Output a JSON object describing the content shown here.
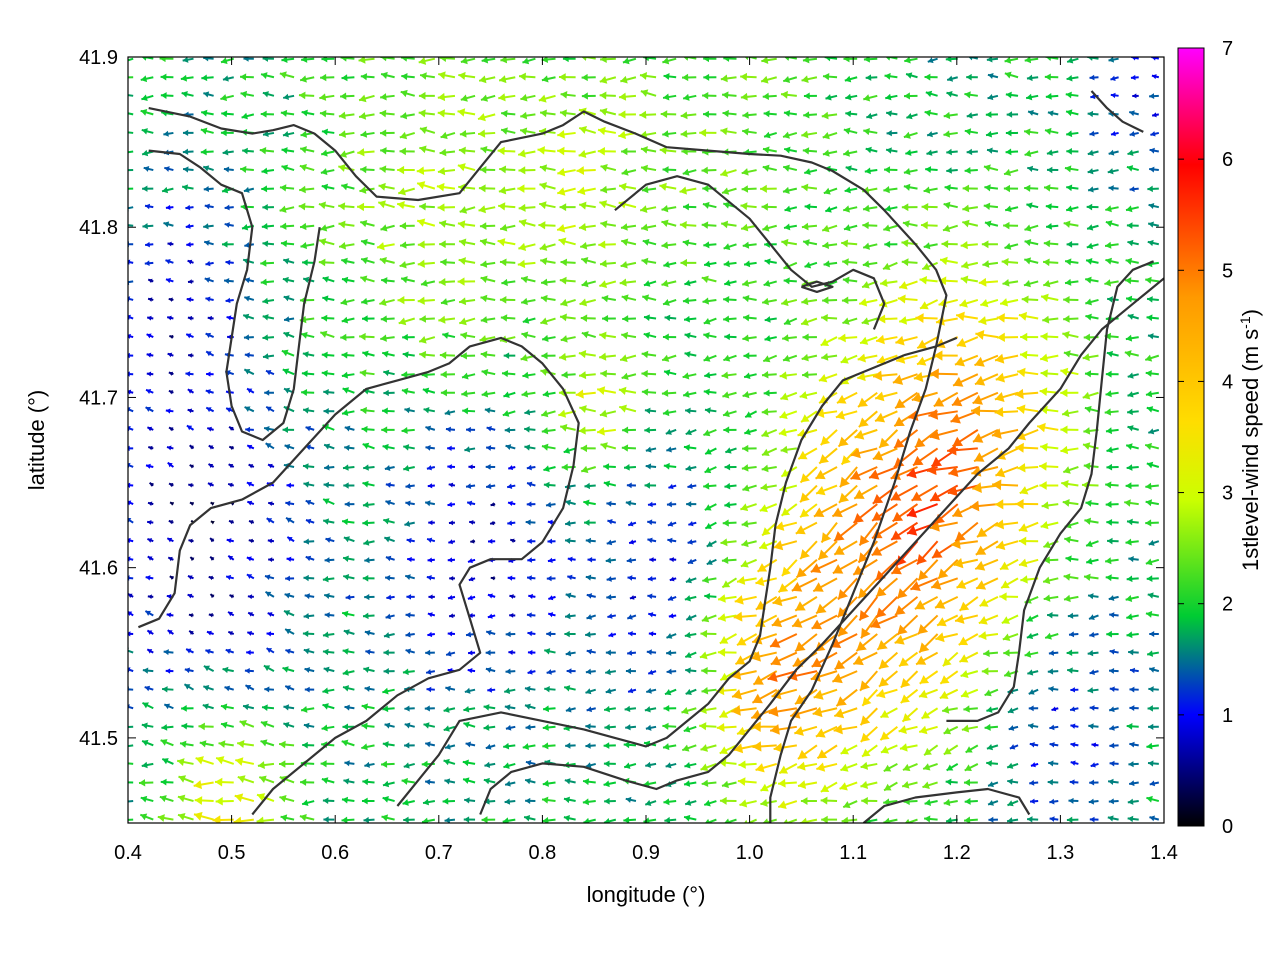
{
  "chart_data": {
    "type": "vector-field",
    "xlabel": "longitude (°)",
    "ylabel": "latitude (°)",
    "xlim": [
      0.4,
      1.4
    ],
    "ylim": [
      41.45,
      41.9
    ],
    "x_ticks": [
      "0.4",
      "0.5",
      "0.6",
      "0.7",
      "0.8",
      "0.9",
      "1.0",
      "1.1",
      "1.2",
      "1.3",
      "1.4"
    ],
    "y_ticks": [
      "41.5",
      "41.6",
      "41.7",
      "41.8",
      "41.9"
    ],
    "x_tick_values": [
      0.4,
      0.5,
      0.6,
      0.7,
      0.8,
      0.9,
      1.0,
      1.1,
      1.2,
      1.3,
      1.4
    ],
    "y_tick_values": [
      41.5,
      41.6,
      41.7,
      41.8,
      41.9
    ],
    "colorbar": {
      "label": "1stlevel-wind speed (m s-1)",
      "label_base": "1stlevel-wind speed (m s",
      "label_sup": "-1",
      "label_end": ")",
      "range": [
        0,
        7
      ],
      "ticks": [
        "0",
        "1",
        "2",
        "3",
        "4",
        "5",
        "6",
        "7"
      ],
      "tick_values": [
        0,
        1,
        2,
        3,
        4,
        5,
        6,
        7
      ],
      "colors": [
        "#000000",
        "#0000ff",
        "#00cc33",
        "#ccff00",
        "#ffdd00",
        "#ff9900",
        "#ff0000",
        "#ff00ff"
      ]
    },
    "grid": false,
    "contour_color": "#333333",
    "contours": [
      [
        [
          0.42,
          41.87
        ],
        [
          0.46,
          41.865
        ],
        [
          0.49,
          41.858
        ],
        [
          0.52,
          41.855
        ],
        [
          0.54,
          41.857
        ],
        [
          0.56,
          41.86
        ],
        [
          0.58,
          41.855
        ],
        [
          0.6,
          41.845
        ],
        [
          0.62,
          41.83
        ],
        [
          0.64,
          41.818
        ],
        [
          0.68,
          41.816
        ],
        [
          0.72,
          41.82
        ],
        [
          0.74,
          41.835
        ],
        [
          0.76,
          41.85
        ],
        [
          0.8,
          41.855
        ],
        [
          0.82,
          41.86
        ],
        [
          0.84,
          41.868
        ],
        [
          0.86,
          41.862
        ],
        [
          0.89,
          41.855
        ],
        [
          0.92,
          41.847
        ],
        [
          0.96,
          41.845
        ],
        [
          1.0,
          41.843
        ],
        [
          1.03,
          41.842
        ],
        [
          1.06,
          41.838
        ],
        [
          1.08,
          41.833
        ],
        [
          1.11,
          41.822
        ],
        [
          1.13,
          41.81
        ],
        [
          1.16,
          41.79
        ],
        [
          1.18,
          41.775
        ],
        [
          1.19,
          41.76
        ],
        [
          1.18,
          41.73
        ],
        [
          1.17,
          41.705
        ],
        [
          1.155,
          41.68
        ],
        [
          1.14,
          41.65
        ],
        [
          1.12,
          41.615
        ],
        [
          1.1,
          41.585
        ],
        [
          1.08,
          41.555
        ],
        [
          1.06,
          41.528
        ],
        [
          1.04,
          41.51
        ],
        [
          1.03,
          41.49
        ],
        [
          1.02,
          41.465
        ],
        [
          1.02,
          41.45
        ]
      ],
      [
        [
          0.42,
          41.845
        ],
        [
          0.45,
          41.843
        ],
        [
          0.47,
          41.835
        ],
        [
          0.49,
          41.825
        ],
        [
          0.51,
          41.82
        ],
        [
          0.52,
          41.8
        ],
        [
          0.515,
          41.775
        ],
        [
          0.505,
          41.755
        ],
        [
          0.5,
          41.735
        ],
        [
          0.495,
          41.715
        ],
        [
          0.5,
          41.695
        ],
        [
          0.51,
          41.68
        ],
        [
          0.53,
          41.675
        ],
        [
          0.55,
          41.685
        ],
        [
          0.56,
          41.705
        ],
        [
          0.565,
          41.73
        ],
        [
          0.57,
          41.755
        ],
        [
          0.58,
          41.78
        ],
        [
          0.585,
          41.8
        ]
      ],
      [
        [
          0.41,
          41.565
        ],
        [
          0.43,
          41.57
        ],
        [
          0.445,
          41.585
        ],
        [
          0.45,
          41.61
        ],
        [
          0.46,
          41.625
        ],
        [
          0.48,
          41.635
        ],
        [
          0.51,
          41.64
        ],
        [
          0.54,
          41.65
        ],
        [
          0.57,
          41.67
        ],
        [
          0.6,
          41.69
        ],
        [
          0.63,
          41.705
        ],
        [
          0.66,
          41.71
        ],
        [
          0.69,
          41.715
        ],
        [
          0.71,
          41.72
        ],
        [
          0.73,
          41.73
        ],
        [
          0.76,
          41.735
        ],
        [
          0.78,
          41.73
        ],
        [
          0.8,
          41.72
        ],
        [
          0.82,
          41.705
        ],
        [
          0.835,
          41.685
        ],
        [
          0.83,
          41.66
        ],
        [
          0.82,
          41.635
        ],
        [
          0.8,
          41.615
        ],
        [
          0.78,
          41.605
        ],
        [
          0.75,
          41.605
        ],
        [
          0.73,
          41.6
        ],
        [
          0.72,
          41.59
        ],
        [
          0.73,
          41.57
        ],
        [
          0.74,
          41.55
        ],
        [
          0.72,
          41.54
        ],
        [
          0.69,
          41.535
        ],
        [
          0.66,
          41.525
        ],
        [
          0.63,
          41.51
        ],
        [
          0.6,
          41.5
        ],
        [
          0.58,
          41.49
        ],
        [
          0.56,
          41.48
        ],
        [
          0.54,
          41.47
        ],
        [
          0.52,
          41.455
        ]
      ],
      [
        [
          0.66,
          41.46
        ],
        [
          0.68,
          41.475
        ],
        [
          0.7,
          41.49
        ],
        [
          0.72,
          41.51
        ],
        [
          0.76,
          41.515
        ],
        [
          0.8,
          41.51
        ],
        [
          0.84,
          41.505
        ],
        [
          0.87,
          41.5
        ],
        [
          0.9,
          41.495
        ],
        [
          0.92,
          41.5
        ],
        [
          0.94,
          41.51
        ],
        [
          0.96,
          41.52
        ],
        [
          0.98,
          41.535
        ],
        [
          1.0,
          41.545
        ],
        [
          1.01,
          41.56
        ],
        [
          1.015,
          41.58
        ],
        [
          1.02,
          41.6
        ],
        [
          1.025,
          41.625
        ],
        [
          1.035,
          41.65
        ],
        [
          1.05,
          41.675
        ],
        [
          1.07,
          41.695
        ],
        [
          1.09,
          41.71
        ],
        [
          1.11,
          41.715
        ],
        [
          1.13,
          41.72
        ],
        [
          1.15,
          41.725
        ],
        [
          1.18,
          41.73
        ],
        [
          1.2,
          41.735
        ]
      ],
      [
        [
          0.87,
          41.81
        ],
        [
          0.9,
          41.825
        ],
        [
          0.93,
          41.83
        ],
        [
          0.96,
          41.825
        ],
        [
          0.98,
          41.815
        ],
        [
          1.0,
          41.805
        ],
        [
          1.02,
          41.79
        ],
        [
          1.04,
          41.775
        ],
        [
          1.06,
          41.765
        ],
        [
          1.08,
          41.768
        ],
        [
          1.1,
          41.775
        ],
        [
          1.12,
          41.77
        ],
        [
          1.13,
          41.755
        ],
        [
          1.12,
          41.74
        ]
      ],
      [
        [
          0.74,
          41.455
        ],
        [
          0.75,
          41.47
        ],
        [
          0.77,
          41.48
        ],
        [
          0.8,
          41.485
        ],
        [
          0.84,
          41.483
        ],
        [
          0.88,
          41.475
        ],
        [
          0.91,
          41.47
        ],
        [
          0.93,
          41.475
        ],
        [
          0.96,
          41.48
        ],
        [
          0.98,
          41.49
        ],
        [
          1.0,
          41.505
        ],
        [
          1.02,
          41.52
        ],
        [
          1.045,
          41.54
        ],
        [
          1.07,
          41.555
        ],
        [
          1.1,
          41.575
        ],
        [
          1.13,
          41.595
        ],
        [
          1.16,
          41.615
        ],
        [
          1.19,
          41.635
        ],
        [
          1.22,
          41.655
        ],
        [
          1.25,
          41.67
        ],
        [
          1.27,
          41.685
        ],
        [
          1.3,
          41.705
        ],
        [
          1.32,
          41.725
        ],
        [
          1.34,
          41.74
        ],
        [
          1.37,
          41.755
        ],
        [
          1.4,
          41.77
        ]
      ],
      [
        [
          1.19,
          41.51
        ],
        [
          1.22,
          41.51
        ],
        [
          1.24,
          41.515
        ],
        [
          1.255,
          41.53
        ],
        [
          1.26,
          41.55
        ],
        [
          1.265,
          41.575
        ],
        [
          1.28,
          41.6
        ],
        [
          1.3,
          41.62
        ],
        [
          1.32,
          41.635
        ],
        [
          1.33,
          41.655
        ],
        [
          1.335,
          41.68
        ],
        [
          1.34,
          41.71
        ],
        [
          1.345,
          41.74
        ],
        [
          1.355,
          41.765
        ],
        [
          1.37,
          41.775
        ],
        [
          1.39,
          41.78
        ]
      ],
      [
        [
          1.11,
          41.45
        ],
        [
          1.13,
          41.46
        ],
        [
          1.16,
          41.465
        ],
        [
          1.2,
          41.468
        ],
        [
          1.23,
          41.47
        ],
        [
          1.26,
          41.465
        ],
        [
          1.27,
          41.455
        ]
      ],
      [
        [
          1.33,
          41.88
        ],
        [
          1.345,
          41.87
        ],
        [
          1.36,
          41.862
        ],
        [
          1.38,
          41.856
        ]
      ],
      [
        [
          1.05,
          41.765
        ],
        [
          1.065,
          41.768
        ],
        [
          1.08,
          41.765
        ],
        [
          1.065,
          41.762
        ],
        [
          1.05,
          41.765
        ]
      ]
    ]
  }
}
